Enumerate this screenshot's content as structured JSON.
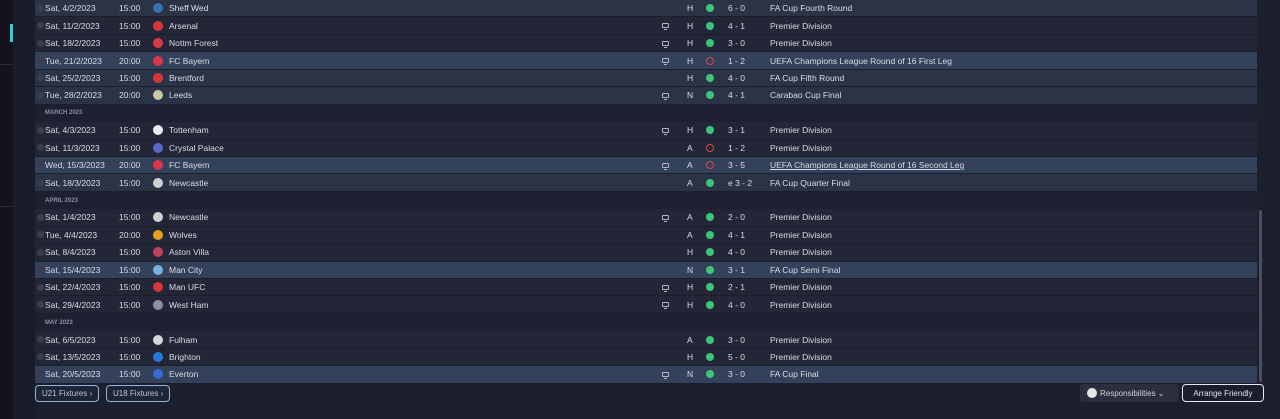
{
  "groups": [
    {
      "month": "",
      "fixtures": [
        {
          "date": "Sat, 4/2/2023",
          "time": "15:00",
          "team": "Sheff Wed",
          "badge_color": "#3a6fb0",
          "tv": false,
          "venue": "H",
          "result": "win",
          "score": "6 - 0",
          "competition": "FA Cup Fourth Round",
          "style": "md"
        },
        {
          "date": "Sat, 11/2/2023",
          "time": "15:00",
          "team": "Arsenal",
          "badge_color": "#d8343c",
          "tv": true,
          "venue": "H",
          "result": "win",
          "score": "4 - 1",
          "competition": "Premier Division",
          "style": ""
        },
        {
          "date": "Sat, 18/2/2023",
          "time": "15:00",
          "team": "Nottm Forest",
          "badge_color": "#d83a44",
          "tv": true,
          "venue": "H",
          "result": "win",
          "score": "3 - 0",
          "competition": "Premier Division",
          "style": ""
        },
        {
          "date": "Tue, 21/2/2023",
          "time": "20:00",
          "team": "FC Bayern",
          "badge_color": "#d8344a",
          "tv": true,
          "venue": "H",
          "result": "loss",
          "score": "1 - 2",
          "competition": "UEFA Champions League Round of 16  First Leg",
          "style": "hl"
        },
        {
          "date": "Sat, 25/2/2023",
          "time": "15:00",
          "team": "Brentford",
          "badge_color": "#d8343c",
          "tv": false,
          "venue": "H",
          "result": "win",
          "score": "4 - 0",
          "competition": "FA Cup Fifth Round",
          "style": "md"
        },
        {
          "date": "Tue, 28/2/2023",
          "time": "20:00",
          "team": "Leeds",
          "badge_color": "#c8c8a8",
          "tv": true,
          "venue": "N",
          "result": "win",
          "score": "4 - 1",
          "competition": "Carabao Cup Final",
          "style": "md"
        }
      ]
    },
    {
      "month": "MARCH 2023",
      "fixtures": [
        {
          "date": "Sat, 4/3/2023",
          "time": "15:00",
          "team": "Tottenham",
          "badge_color": "#e8ecf4",
          "tv": true,
          "venue": "H",
          "result": "win",
          "score": "3 - 1",
          "competition": "Premier Division",
          "style": ""
        },
        {
          "date": "Sat, 11/3/2023",
          "time": "15:00",
          "team": "Crystal Palace",
          "badge_color": "#5a68c8",
          "tv": false,
          "venue": "A",
          "result": "loss",
          "score": "1 - 2",
          "competition": "Premier Division",
          "style": ""
        },
        {
          "date": "Wed, 15/3/2023",
          "time": "20:00",
          "team": "FC Bayern",
          "badge_color": "#d8344a",
          "tv": true,
          "venue": "A",
          "result": "loss",
          "score": "3 - 5",
          "competition": "UEFA Champions League Round of 16  Second Leg",
          "style": "hl",
          "underline": true
        },
        {
          "date": "Sat, 18/3/2023",
          "time": "15:00",
          "team": "Newcastle",
          "badge_color": "#d0d0d0",
          "tv": false,
          "venue": "A",
          "result": "win",
          "score": "e 3 - 2",
          "competition": "FA Cup Quarter Final",
          "style": "md"
        }
      ]
    },
    {
      "month": "APRIL 2023",
      "fixtures": [
        {
          "date": "Sat, 1/4/2023",
          "time": "15:00",
          "team": "Newcastle",
          "badge_color": "#d0d0d0",
          "tv": true,
          "venue": "A",
          "result": "win",
          "score": "2 - 0",
          "competition": "Premier Division",
          "style": ""
        },
        {
          "date": "Tue, 4/4/2023",
          "time": "20:00",
          "team": "Wolves",
          "badge_color": "#e0a020",
          "tv": false,
          "venue": "A",
          "result": "win",
          "score": "4 - 1",
          "competition": "Premier Division",
          "style": ""
        },
        {
          "date": "Sat, 8/4/2023",
          "time": "15:00",
          "team": "Aston Villa",
          "badge_color": "#c04060",
          "tv": false,
          "venue": "H",
          "result": "win",
          "score": "4 - 0",
          "competition": "Premier Division",
          "style": ""
        },
        {
          "date": "Sat, 15/4/2023",
          "time": "15:00",
          "team": "Man City",
          "badge_color": "#7ab0e0",
          "tv": false,
          "venue": "N",
          "result": "win",
          "score": "3 - 1",
          "competition": "FA Cup Semi Final",
          "style": "hl"
        },
        {
          "date": "Sat, 22/4/2023",
          "time": "15:00",
          "team": "Man UFC",
          "badge_color": "#d8343c",
          "tv": true,
          "venue": "H",
          "result": "win",
          "score": "2 - 1",
          "competition": "Premier Division",
          "style": ""
        },
        {
          "date": "Sat, 29/4/2023",
          "time": "15:00",
          "team": "West Ham",
          "badge_color": "#8a90a8",
          "tv": true,
          "venue": "H",
          "result": "win",
          "score": "4 - 0",
          "competition": "Premier Division",
          "style": ""
        }
      ]
    },
    {
      "month": "MAY 2023",
      "fixtures": [
        {
          "date": "Sat, 6/5/2023",
          "time": "15:00",
          "team": "Fulham",
          "badge_color": "#d8d8d8",
          "tv": false,
          "venue": "A",
          "result": "win",
          "score": "3 - 0",
          "competition": "Premier Division",
          "style": ""
        },
        {
          "date": "Sat, 13/5/2023",
          "time": "15:00",
          "team": "Brighton",
          "badge_color": "#2a78d8",
          "tv": false,
          "venue": "H",
          "result": "win",
          "score": "5 - 0",
          "competition": "Premier Division",
          "style": ""
        },
        {
          "date": "Sat, 20/5/2023",
          "time": "15:00",
          "team": "Everton",
          "badge_color": "#3a6ad0",
          "tv": true,
          "venue": "N",
          "result": "win",
          "score": "3 - 0",
          "competition": "FA Cup Final",
          "style": "hl"
        }
      ]
    }
  ],
  "footer": {
    "u21": "U21 Fixtures ›",
    "u18": "U18 Fixtures ›",
    "responsibilities": "Responsibilities ⌄",
    "arrange": "Arrange Friendly"
  }
}
